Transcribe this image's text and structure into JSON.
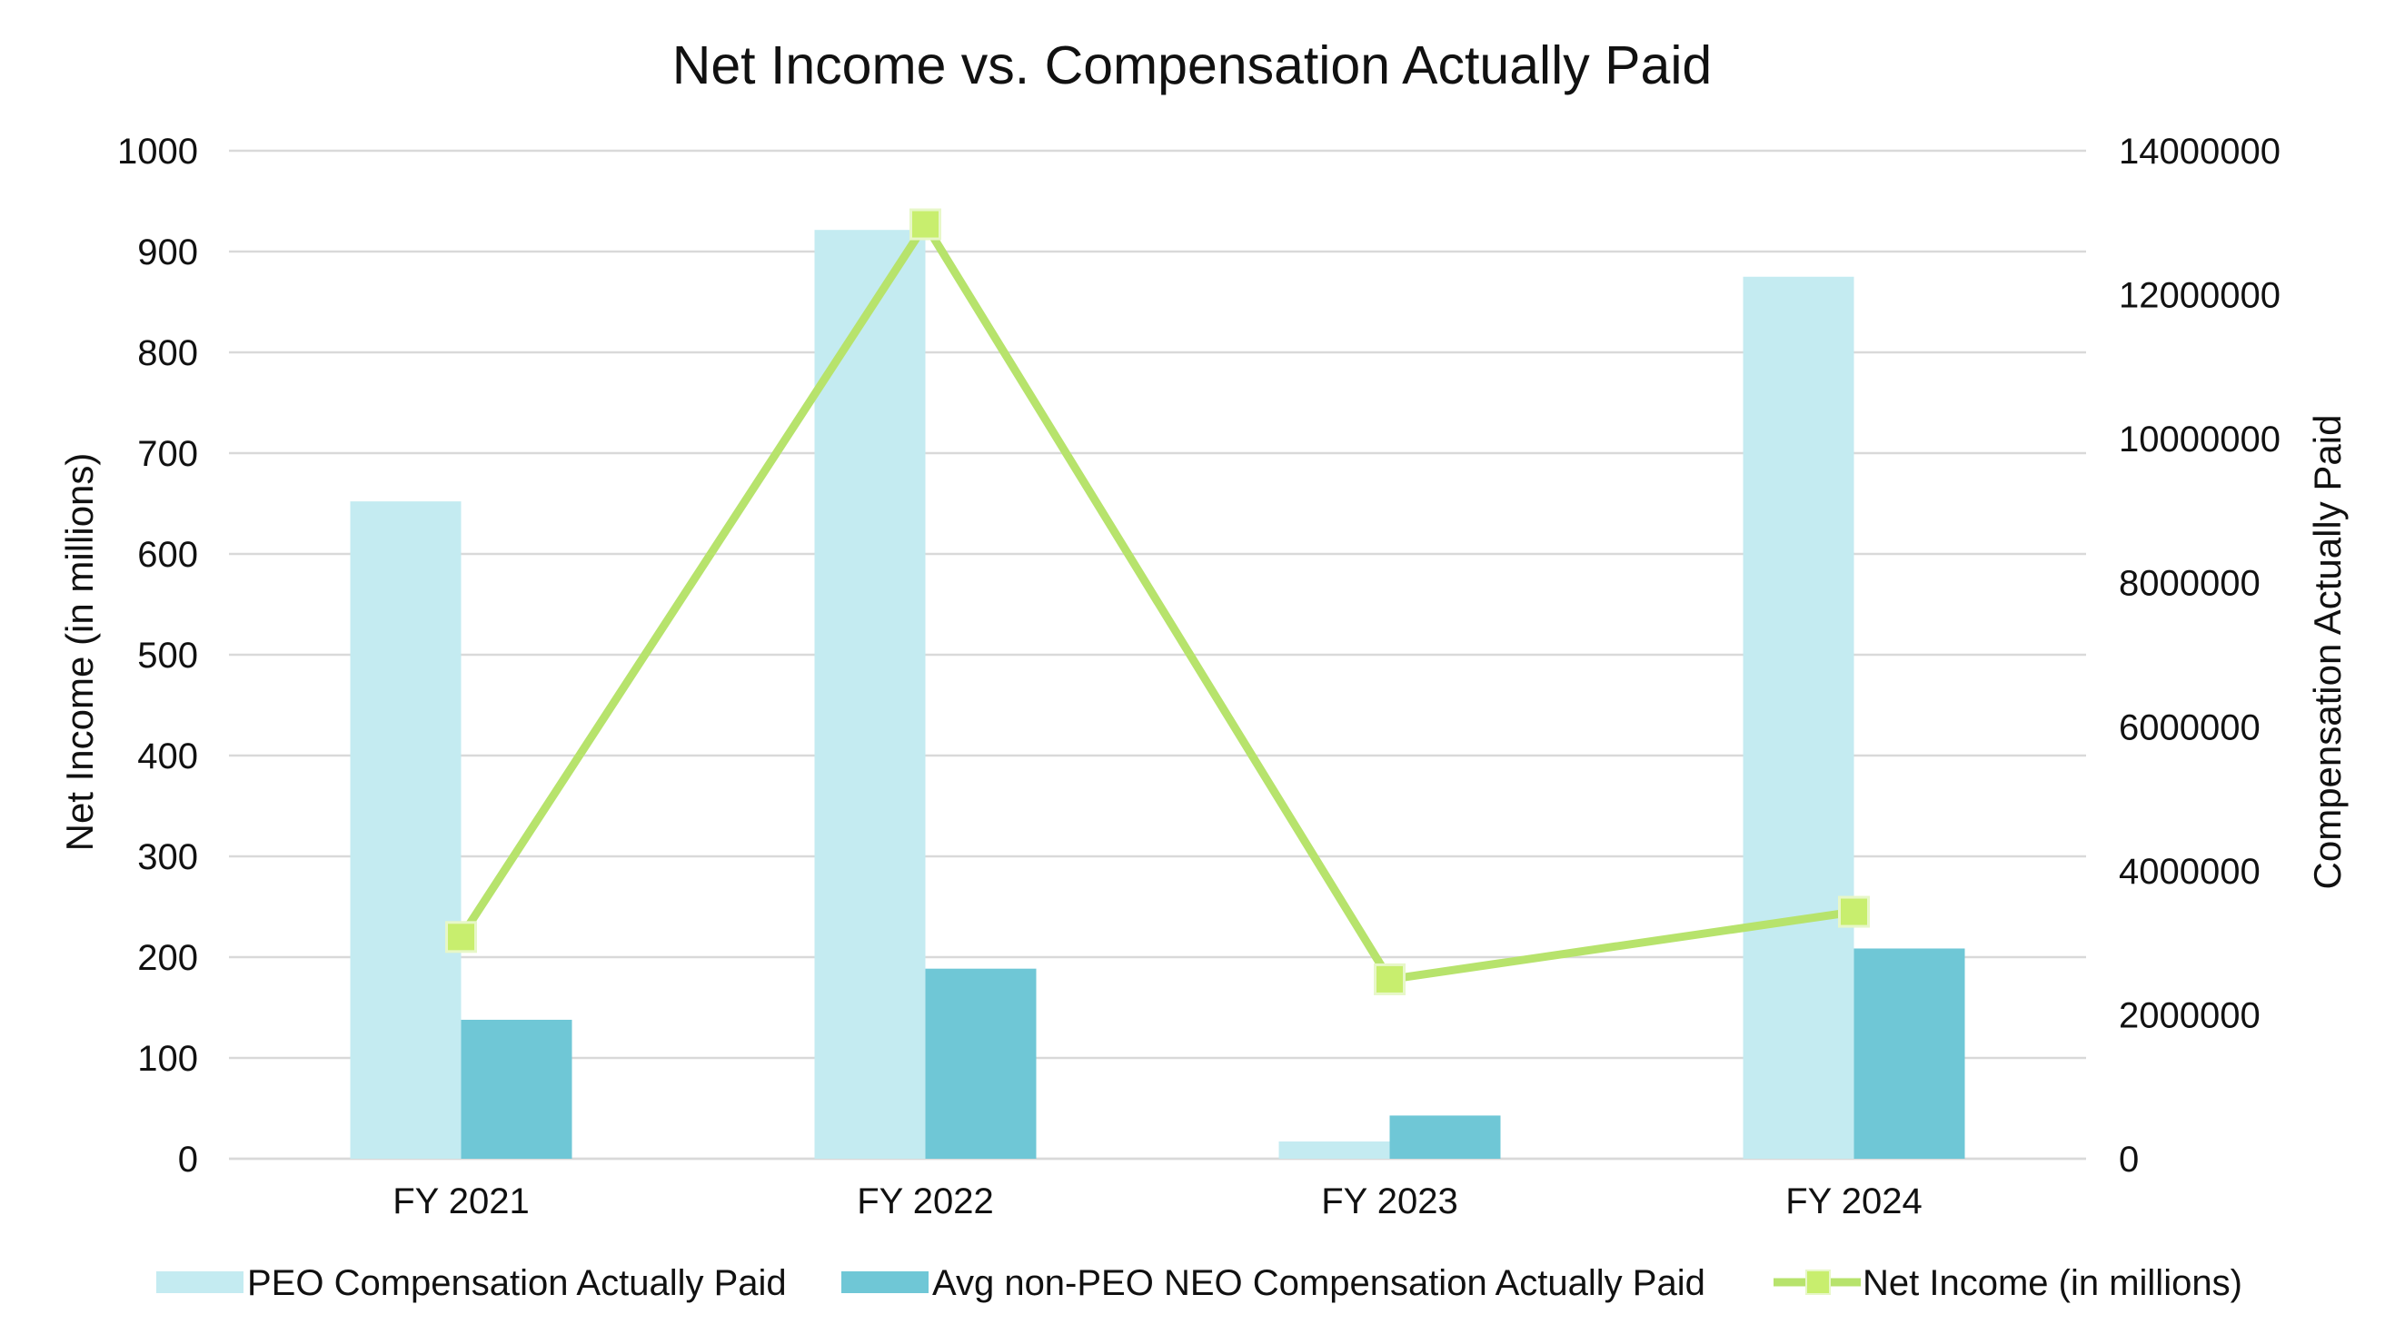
{
  "chart_data": {
    "type": "bar",
    "title": "Net Income vs. Compensation Actually Paid",
    "categories": [
      "FY 2021",
      "FY 2022",
      "FY 2023",
      "FY 2024"
    ],
    "ylabel_left": "Net Income (in millions)",
    "ylabel_right": "Compensation Actually Paid",
    "ylim_left": [
      0,
      1000
    ],
    "ylim_right": [
      0,
      14000000
    ],
    "yticks_left": [
      "0",
      "100",
      "200",
      "300",
      "400",
      "500",
      "600",
      "700",
      "800",
      "900",
      "1000"
    ],
    "yticks_right": [
      "0",
      "2000000",
      "4000000",
      "6000000",
      "8000000",
      "10000000",
      "12000000",
      "14000000"
    ],
    "grid": true,
    "legend_position": "bottom",
    "series": [
      {
        "name": "PEO Compensation Actually Paid",
        "type": "bar",
        "axis": "right",
        "color": "#c4ebf1",
        "values": [
          9130000,
          12900000,
          240000,
          12250000
        ]
      },
      {
        "name": "Avg non-PEO NEO Compensation Actually Paid",
        "type": "bar",
        "axis": "right",
        "color": "#6fc7d6",
        "values": [
          1930000,
          2640000,
          600000,
          2920000
        ]
      },
      {
        "name": "Net Income (in millions)",
        "type": "line",
        "axis": "left",
        "color": "#b7e36c",
        "marker_color": "#c8ee6e",
        "values": [
          220,
          927,
          178,
          245
        ]
      }
    ]
  }
}
